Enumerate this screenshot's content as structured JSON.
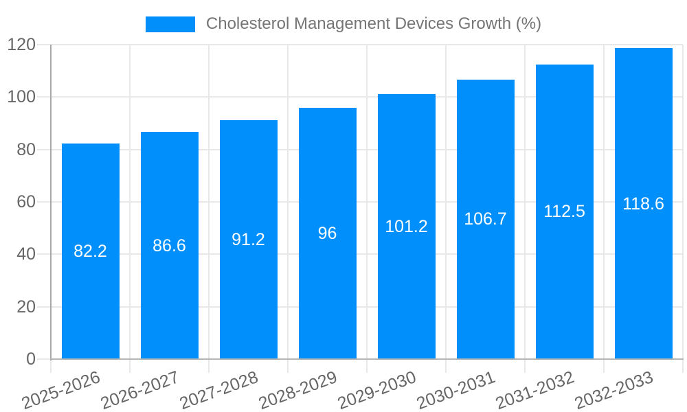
{
  "legend": {
    "label": "Cholesterol Management Devices Growth (%)"
  },
  "colors": {
    "bar": "#008FFB",
    "grid": "#e8e8e8",
    "y_axis": "#a8a8a8",
    "x_axis": "#b4b4b4",
    "tick_label": "#666666",
    "legend_label": "#757575",
    "value_label": "#ffffff"
  },
  "chart_data": {
    "type": "bar",
    "categories": [
      "2025-2026",
      "2026-2027",
      "2027-2028",
      "2028-2029",
      "2029-2030",
      "2030-2031",
      "2031-2032",
      "2032-2033"
    ],
    "series": [
      {
        "name": "Cholesterol Management Devices Growth (%)",
        "color": "#008FFB",
        "values": [
          82.2,
          86.6,
          91.2,
          96,
          101.2,
          106.7,
          112.5,
          118.6
        ]
      }
    ],
    "value_labels": [
      "82.2",
      "86.6",
      "91.2",
      "96",
      "101.2",
      "106.7",
      "112.5",
      "118.6"
    ],
    "xlabel": "",
    "ylabel": "",
    "ylim": [
      0,
      120
    ],
    "yticks": [
      0,
      20,
      40,
      60,
      80,
      100,
      120
    ],
    "grid": true,
    "legend_position": "top",
    "value_label_position": "center-inside",
    "x_tick_rotation_deg": -20
  }
}
